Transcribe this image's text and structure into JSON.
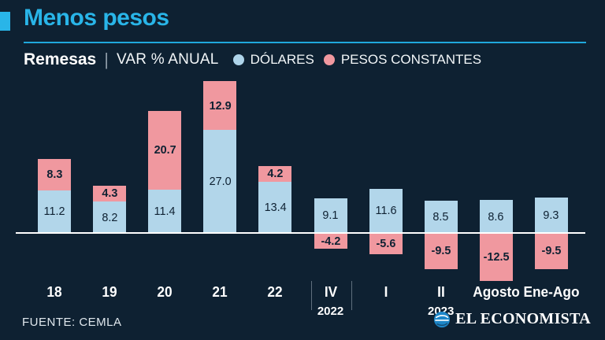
{
  "header": {
    "title": "Menos pesos",
    "subject": "Remesas",
    "divider": "|",
    "measure": "VAR % ANUAL"
  },
  "legend": [
    {
      "label": "DÓLARES",
      "color": "#aed4ea"
    },
    {
      "label": "PESOS CONSTANTES",
      "color": "#f0989f"
    }
  ],
  "chart_data": {
    "type": "bar",
    "variant": "stacked-diverging",
    "title": "Menos pesos",
    "subtitle": "Remesas | VAR % ANUAL",
    "categories": [
      "18",
      "19",
      "20",
      "21",
      "22",
      "IV",
      "I",
      "II",
      "Agosto",
      "Ene-Ago"
    ],
    "series": [
      {
        "name": "DÓLARES",
        "color": "#b2d6ea",
        "values": [
          11.2,
          8.2,
          11.4,
          27.0,
          13.4,
          9.1,
          11.6,
          8.5,
          8.6,
          9.3
        ],
        "labels": [
          "11.2",
          "8.2",
          "11.4",
          "27.0",
          "13.4",
          "9.1",
          "11.6",
          "8.5",
          "8.6",
          "9.3"
        ]
      },
      {
        "name": "PESOS CONSTANTES",
        "color": "#f0989f",
        "values": [
          8.3,
          4.3,
          20.7,
          12.9,
          4.2,
          -4.2,
          -5.6,
          -9.5,
          -12.5,
          -9.5
        ],
        "labels": [
          "8.3",
          "4.3",
          "20.7",
          "12.9",
          "4.2",
          "-4.2",
          "-5.6",
          "-9.5",
          "-12.5",
          "-9.5"
        ]
      }
    ],
    "ylim": [
      -13.5,
      40.5
    ],
    "grid": false,
    "legend_position": "top",
    "year_markers": [
      {
        "label": "2022",
        "category": "IV"
      },
      {
        "label": "2023",
        "category": "II"
      }
    ]
  },
  "footer": {
    "source": "FUENTE: CEMLA",
    "brand": "EL ECONOMISTA"
  },
  "colors": {
    "background": "#0e2132",
    "accent_cyan": "#29b5e8",
    "bar_blue": "#b2d6ea",
    "bar_pink": "#f0989f",
    "label_dark": "#0e2132",
    "text_white": "#ffffff"
  }
}
